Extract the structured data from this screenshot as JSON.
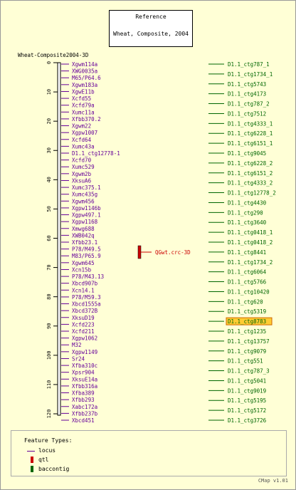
{
  "reference": {
    "line1": "Reference",
    "line2": "Wheat, Composite, 2004"
  },
  "map_title": "Wheat-Composite2004-3D",
  "ticks": [
    0,
    10,
    20,
    30,
    40,
    50,
    60,
    70,
    80,
    90,
    100,
    110,
    120
  ],
  "loci": [
    "Xgwm114a",
    "XWG0035a",
    "M65/P64.6",
    "Xgwm183a",
    "XgwE11b",
    "Xcfd55",
    "Xcfd79a",
    "Xumc11a",
    "Xfbb370.2",
    "Xgwm22",
    "Xgpw1007",
    "Xcfd64",
    "Xumc43a",
    "D1.1_ctg12778-1",
    "Xcfd70",
    "Xumc529",
    "Xgwm2b",
    "XksuA6",
    "Xumc375.1",
    "Xumc435g",
    "Xgwm456",
    "Xgpw1146b",
    "Xgpw497.1",
    "Xgpw1168",
    "Xmwg688",
    "XWB042q",
    "Xfbb23.1",
    "P78/M49.5",
    "M83/P65.9",
    "Xgwm645",
    "Xcn15b",
    "P78/M43.13",
    "Xbcd907b",
    "Xcn14.1",
    "P78/M59.3",
    "Xbcd1555a",
    "Xbcd372B",
    "XksuD19",
    "Xcfd223",
    "Xcfd211",
    "Xgpw1062",
    "M32",
    "Xgpw1149",
    "Sr24",
    "Xfba310c",
    "Xpsr904",
    "XksuE14a",
    "Xfbb316a",
    "Xfba389",
    "Xfbb293",
    "Xabc172a",
    "Xfbb237b",
    "Xbcd451"
  ],
  "qtl": {
    "label": "QGwt.crc-3D"
  },
  "contigs": [
    "D1.1_ctg787_1",
    "D1.1_ctg1734_1",
    "D1.1_ctg5743",
    "D1.1_ctg4173",
    "D1.1_ctg787_2",
    "D1.1_ctg7512",
    "D1.1_ctg4333_1",
    "D1.1_ctg6228_1",
    "D1.1_ctg6151_1",
    "D1.1_ctg9045",
    "D1.1_ctg6228_2",
    "D1.1_ctg6151_2",
    "D1.1_ctg4333_2",
    "D1.1_ctg12778_2",
    "D1.1_ctg4430",
    "D1.1_ctg290",
    "D1.1_ctg3640",
    "D1.1_ctg0418_1",
    "D1.1_ctg0418_2",
    "D1.1_ctg8441",
    "D1.1_ctg1734_2",
    "D1.1_ctg6064",
    "D1.1_ctg5766",
    "D1.1_ctg10420",
    "D1.1_ctg620",
    "D1.1_ctg5319",
    "D1.1_ctg8783",
    "D1.1_ctg1235",
    "D1.1_ctg13757",
    "D1.1_ctg9079",
    "D1.1_ctg551",
    "D1.1_ctg787_3",
    "D1.1_ctg5041",
    "D1.1_ctg9019",
    "D1.1_ctg5195",
    "D1.1_ctg5172",
    "D1.1_ctg3726"
  ],
  "highlighted_contig": "D1.1_ctg8783",
  "legend": {
    "title": "Feature Types:",
    "items": [
      {
        "label": "locus"
      },
      {
        "label": "qtl"
      },
      {
        "label": "baccontig"
      }
    ]
  },
  "version": "CMap v1.01",
  "colors": {
    "locus": "#660099",
    "qtl": "#cc0000",
    "baccontig": "#006600",
    "highlight": "#ffcc33"
  }
}
